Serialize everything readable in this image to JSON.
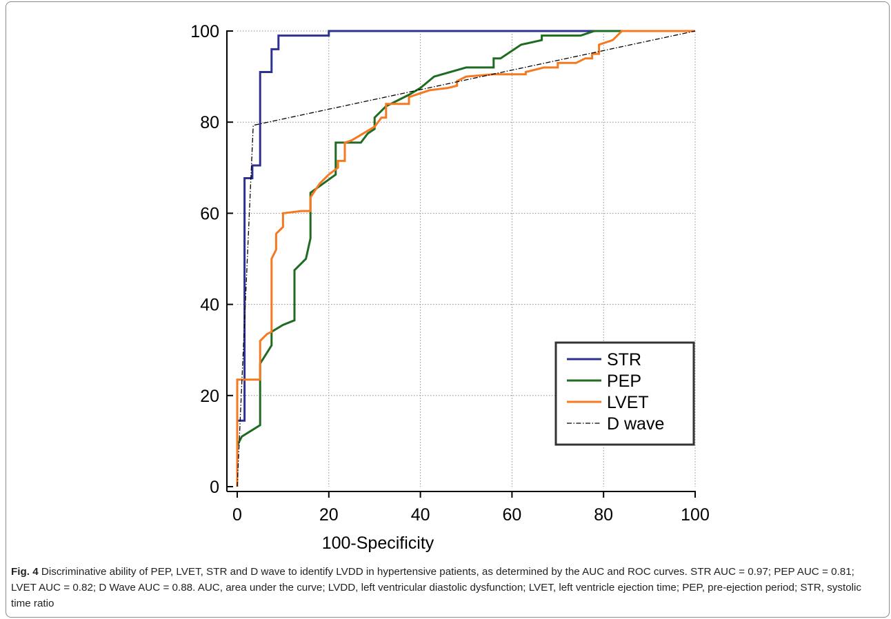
{
  "chart_data": {
    "type": "line",
    "xlabel": "100-Specificity",
    "ylabel": "",
    "xlim": [
      0,
      100
    ],
    "ylim": [
      0,
      100
    ],
    "x_ticks": [
      "0",
      "20",
      "40",
      "60",
      "80",
      "100"
    ],
    "y_ticks": [
      "0",
      "20",
      "40",
      "60",
      "80",
      "100"
    ],
    "grid": true,
    "legend_position": "bottom-right",
    "series": [
      {
        "name": "STR",
        "color": "#2e3192",
        "style": "solid",
        "points": [
          [
            0,
            0
          ],
          [
            0,
            14.5
          ],
          [
            1.6,
            14.5
          ],
          [
            1.6,
            67.7
          ],
          [
            3.3,
            67.7
          ],
          [
            3.3,
            70.5
          ],
          [
            5,
            70.5
          ],
          [
            5,
            91
          ],
          [
            7.5,
            91
          ],
          [
            7.5,
            96
          ],
          [
            9,
            96
          ],
          [
            9,
            99
          ],
          [
            20,
            99
          ],
          [
            20,
            100
          ],
          [
            100,
            100
          ]
        ]
      },
      {
        "name": "PEP",
        "color": "#1e6b21",
        "style": "solid",
        "points": [
          [
            0,
            0
          ],
          [
            0,
            9
          ],
          [
            1,
            11
          ],
          [
            5,
            13.5
          ],
          [
            5,
            27
          ],
          [
            7.5,
            31
          ],
          [
            7.5,
            34
          ],
          [
            10,
            35.5
          ],
          [
            12.5,
            36.5
          ],
          [
            12.5,
            47.5
          ],
          [
            15,
            50
          ],
          [
            16,
            54.5
          ],
          [
            16,
            64.5
          ],
          [
            21.5,
            68.5
          ],
          [
            21.5,
            75.5
          ],
          [
            27,
            75.5
          ],
          [
            28.5,
            77.5
          ],
          [
            30,
            78.5
          ],
          [
            30,
            81
          ],
          [
            32.5,
            83.5
          ],
          [
            37.5,
            86
          ],
          [
            40,
            87.5
          ],
          [
            43,
            90
          ],
          [
            50,
            92
          ],
          [
            56,
            92
          ],
          [
            56,
            94
          ],
          [
            57.5,
            94
          ],
          [
            62,
            97
          ],
          [
            66.5,
            98
          ],
          [
            66.5,
            99
          ],
          [
            75,
            99
          ],
          [
            78,
            100
          ],
          [
            100,
            100
          ]
        ]
      },
      {
        "name": "LVET",
        "color": "#f47920",
        "style": "solid",
        "points": [
          [
            0,
            0
          ],
          [
            0,
            23.5
          ],
          [
            5,
            23.5
          ],
          [
            5,
            32
          ],
          [
            6.5,
            33.5
          ],
          [
            7.5,
            34
          ],
          [
            7.5,
            50
          ],
          [
            8.5,
            52
          ],
          [
            8.5,
            55.5
          ],
          [
            10,
            57
          ],
          [
            10,
            60
          ],
          [
            14,
            60.5
          ],
          [
            16,
            60.5
          ],
          [
            16,
            63.5
          ],
          [
            18,
            66.5
          ],
          [
            20,
            68.5
          ],
          [
            22,
            70
          ],
          [
            22,
            71.5
          ],
          [
            23.5,
            71.5
          ],
          [
            23.5,
            75.5
          ],
          [
            25,
            76
          ],
          [
            30,
            79
          ],
          [
            31.5,
            81
          ],
          [
            32.5,
            81
          ],
          [
            32.5,
            84
          ],
          [
            37.5,
            84
          ],
          [
            37.5,
            85.5
          ],
          [
            42,
            87
          ],
          [
            46,
            87.5
          ],
          [
            48,
            88
          ],
          [
            48,
            89
          ],
          [
            50,
            90
          ],
          [
            56,
            90.5
          ],
          [
            63,
            90.5
          ],
          [
            63,
            91
          ],
          [
            67,
            92
          ],
          [
            70,
            92
          ],
          [
            70,
            93
          ],
          [
            74,
            93
          ],
          [
            76,
            94
          ],
          [
            77.5,
            94
          ],
          [
            77.5,
            95
          ],
          [
            79,
            95
          ],
          [
            79,
            97
          ],
          [
            82,
            98
          ],
          [
            84,
            100
          ],
          [
            100,
            100
          ]
        ]
      },
      {
        "name": "D wave",
        "color": "#000000",
        "style": "dashdot",
        "points": [
          [
            0,
            0
          ],
          [
            3.5,
            79.3
          ],
          [
            100,
            100
          ]
        ]
      }
    ]
  },
  "caption": {
    "label": "Fig. 4",
    "text": " Discriminative ability of PEP, LVET, STR and D wave to identify LVDD in hypertensive patients, as determined by the AUC and ROC curves. STR AUC = 0.97; PEP AUC = 0.81; LVET AUC = 0.82; D Wave AUC = 0.88. AUC, area under the curve; LVDD, left ventricular diastolic dysfunction; LVET, left ventricle ejection time; PEP, pre-ejection period; STR, systolic time ratio"
  }
}
